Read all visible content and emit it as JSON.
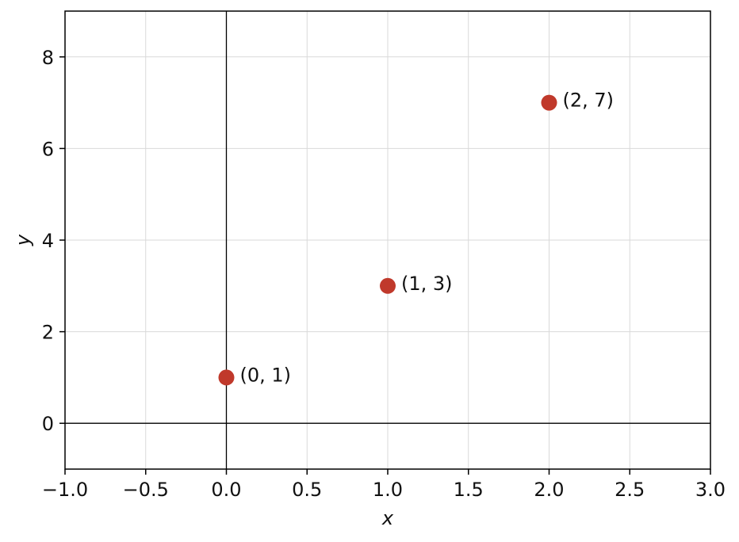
{
  "chart_data": {
    "type": "scatter",
    "title": "",
    "xlabel": "x",
    "ylabel": "y",
    "xlim": [
      -1.0,
      3.0
    ],
    "ylim": [
      -1.0,
      9.0
    ],
    "grid": true,
    "x_ticks": [
      -1.0,
      -0.5,
      0.0,
      0.5,
      1.0,
      1.5,
      2.0,
      2.5,
      3.0
    ],
    "x_tick_labels": [
      "−1.0",
      "−0.5",
      "0.0",
      "0.5",
      "1.0",
      "1.5",
      "2.0",
      "2.5",
      "3.0"
    ],
    "y_ticks": [
      0,
      2,
      4,
      6,
      8
    ],
    "y_tick_labels": [
      "0",
      "2",
      "4",
      "6",
      "8"
    ],
    "reference_lines": {
      "x": 0,
      "y": 0
    },
    "series": [
      {
        "color": "#c0392b",
        "points": [
          {
            "x": 0,
            "y": 1,
            "label": "(0, 1)"
          },
          {
            "x": 1,
            "y": 3,
            "label": "(1, 3)"
          },
          {
            "x": 2,
            "y": 7,
            "label": "(2, 7)"
          }
        ]
      }
    ]
  }
}
